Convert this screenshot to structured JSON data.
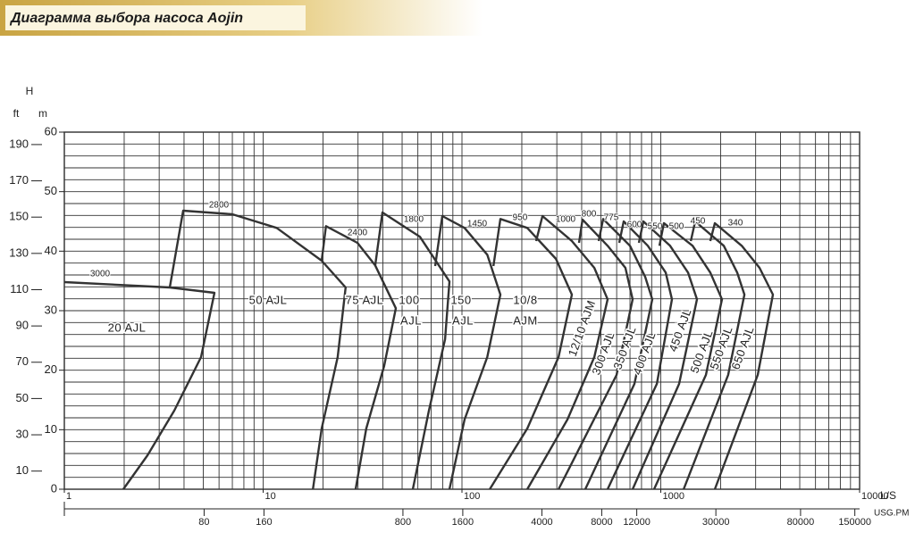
{
  "chart_data": {
    "type": "line",
    "title": "Диаграмма выбора насоса Aojin",
    "y_label": "H",
    "y_unit": "m",
    "y2_unit": "ft",
    "x_unit": "L/S",
    "x2_unit": "USG.PM",
    "log_x": true,
    "grid": true,
    "xlim": [
      1,
      10000
    ],
    "xticks": [
      1,
      10,
      100,
      1000,
      10000
    ],
    "x2lim": [
      15.85,
      158503
    ],
    "x2ticks": [
      80,
      160,
      800,
      1600,
      4000,
      8000,
      12000,
      30000,
      80000,
      150000
    ],
    "ylim": [
      0,
      60
    ],
    "yticks": [
      0,
      10,
      20,
      30,
      40,
      50,
      60
    ],
    "y2lim": [
      0,
      196.85
    ],
    "y2ticks": [
      10,
      30,
      50,
      70,
      90,
      110,
      130,
      150,
      170,
      190
    ],
    "xgrid": [
      1,
      2,
      3,
      4,
      5,
      6,
      7,
      8,
      9,
      10,
      20,
      30,
      40,
      50,
      60,
      70,
      80,
      90,
      100,
      200,
      300,
      400,
      500,
      600,
      700,
      800,
      900,
      1000,
      2000,
      3000,
      4000,
      5000,
      6000,
      7000,
      8000,
      9000,
      10000
    ],
    "ygrid": [
      0,
      2,
      4,
      6,
      8,
      10,
      12,
      14,
      16,
      18,
      20,
      22,
      24,
      26,
      28,
      30,
      32,
      34,
      36,
      38,
      40,
      42,
      44,
      46,
      48,
      50,
      52,
      54,
      56,
      58,
      60
    ],
    "series": [
      {
        "label": [
          "20 AJL"
        ],
        "speed": 3000,
        "color": "#333333",
        "x": [
          1,
          3.39,
          5.69,
          4.87,
          3.57,
          2.62,
          1.98
        ],
        "values": [
          34.8,
          33.9,
          33.0,
          22.2,
          13.2,
          5.7,
          0
        ]
      },
      {
        "label": [
          "50 AJL"
        ],
        "speed": 2800,
        "color": "#333333",
        "x": [
          3.39,
          3.96,
          7.0,
          11.7,
          19.7,
          26.0,
          23.7,
          19.7,
          17.8
        ],
        "values": [
          33.9,
          46.8,
          46.2,
          43.9,
          38.4,
          33.9,
          22.2,
          10.2,
          0
        ]
      },
      {
        "label": [
          "75 AJL"
        ],
        "speed": 2400,
        "color": "#333333",
        "x": [
          19.7,
          20.7,
          29.8,
          36.6,
          46.5,
          40.6,
          33.0,
          29.2
        ],
        "values": [
          38.4,
          44.2,
          41.4,
          37.6,
          30.4,
          20.7,
          10.2,
          0
        ]
      },
      {
        "label": [
          "100",
          "AJL"
        ],
        "speed": 1800,
        "color": "#333333",
        "x": [
          36.6,
          39.8,
          61.5,
          86.5,
          82.2,
          68.2,
          56.6
        ],
        "values": [
          37.6,
          46.5,
          42.4,
          34.9,
          25.2,
          13.2,
          0
        ]
      },
      {
        "label": [
          "150",
          "AJL"
        ],
        "speed": 1450,
        "color": "#333333",
        "x": [
          73.3,
          79.6,
          103,
          134,
          156,
          134,
          103,
          86.5
        ],
        "values": [
          37.5,
          45.9,
          43.9,
          39.4,
          32.7,
          22.2,
          11.7,
          0
        ]
      },
      {
        "label": [
          "10/8",
          "AJM"
        ],
        "speed": 950,
        "color": "#333333",
        "x": [
          144,
          156,
          213,
          297,
          357,
          306,
          213,
          138
        ],
        "values": [
          37.5,
          45.4,
          43.9,
          38.7,
          32.7,
          22.2,
          10.2,
          0
        ]
      },
      {
        "label": [
          "12/10 AJM"
        ],
        "speed": 1000,
        "color": "#333333",
        "x": [
          236,
          254,
          357,
          463,
          540,
          463,
          339,
          213
        ],
        "values": [
          41.7,
          45.9,
          41.7,
          37.2,
          31.9,
          22.2,
          11.7,
          0
        ]
      },
      {
        "label": [
          "300 AJL"
        ],
        "speed": 800,
        "color": "#333333",
        "x": [
          388,
          404,
          540,
          664,
          722,
          599,
          306
        ],
        "values": [
          41.4,
          45.3,
          40.9,
          37.2,
          31.9,
          19.2,
          0
        ]
      },
      {
        "label": [
          "350 AJL"
        ],
        "speed": 775,
        "color": "#333333",
        "x": [
          487,
          513,
          700,
          834,
          906,
          737,
          417
        ],
        "values": [
          41.7,
          45.4,
          40.9,
          35.7,
          31.9,
          17.7,
          0
        ]
      },
      {
        "label": [
          "400 AJL"
        ],
        "speed": 600,
        "color": "#333333",
        "x": [
          618,
          651,
          861,
          1059,
          1138,
          955,
          540
        ],
        "values": [
          41.4,
          45.0,
          40.9,
          36.4,
          31.9,
          17.7,
          0
        ]
      },
      {
        "label": [
          "450 AJL"
        ],
        "speed": 550,
        "color": "#333333",
        "x": [
          776,
          817,
          1114,
          1371,
          1521,
          1236,
          722
        ],
        "values": [
          41.4,
          45.0,
          40.9,
          36.4,
          31.9,
          17.7,
          0
        ]
      },
      {
        "label": [
          "500 AJL"
        ],
        "speed": 500,
        "color": "#333333",
        "x": [
          985,
          1037,
          1445,
          1775,
          2032,
          1687,
          925
        ],
        "values": [
          40.9,
          44.7,
          40.9,
          36.4,
          31.9,
          19.2,
          0
        ]
      },
      {
        "label": [
          "550 AJL"
        ],
        "speed": 450,
        "color": "#333333",
        "x": [
          1416,
          1489,
          2075,
          2423,
          2633,
          2183,
          1303
        ],
        "values": [
          41.7,
          45.0,
          40.9,
          36.4,
          32.7,
          19.2,
          0
        ]
      },
      {
        "label": [
          "650 AJL"
        ],
        "speed": 340,
        "color": "#333333",
        "x": [
          1775,
          1871,
          2553,
          3138,
          3664,
          3075,
          1871
        ],
        "values": [
          41.7,
          44.7,
          40.9,
          37.2,
          32.7,
          19.2,
          0
        ]
      }
    ]
  }
}
